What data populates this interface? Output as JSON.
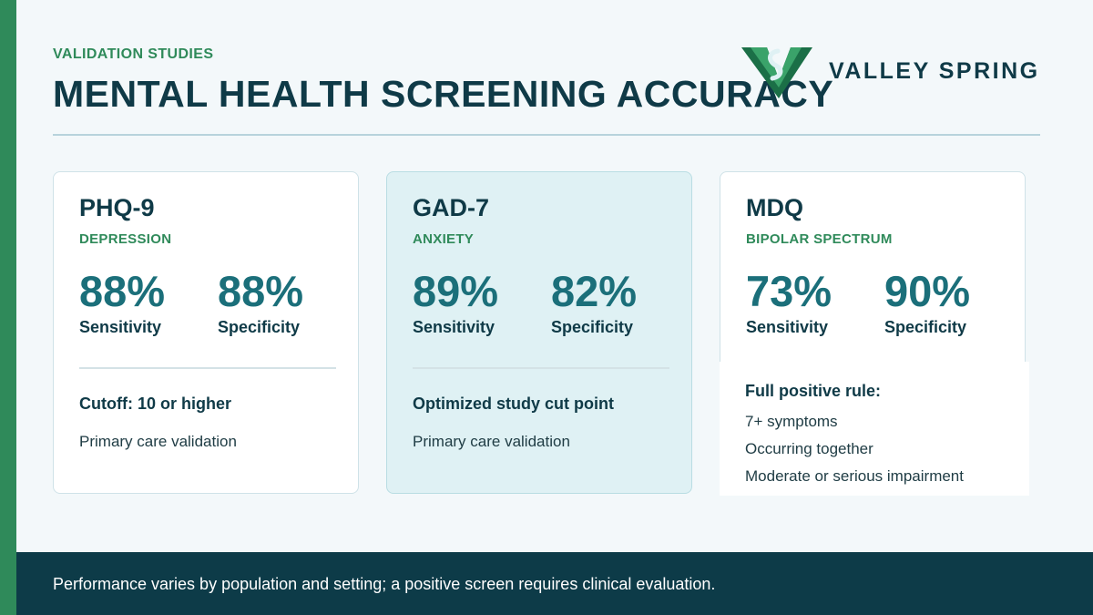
{
  "header": {
    "eyebrow": "VALIDATION STUDIES",
    "title": "MENTAL HEALTH SCREENING ACCURACY",
    "logo_text": "VALLEY SPRING"
  },
  "colors": {
    "brand_green": "#2f8a5a",
    "navy": "#0f3a47",
    "teal": "#1b6f7a",
    "highlight_card": "#dff1f4",
    "footer_bg": "#0d3b48"
  },
  "cards": [
    {
      "title": "PHQ-9",
      "subtitle": "DEPRESSION",
      "sensitivity": "88%",
      "sensitivity_label": "Sensitivity",
      "specificity": "88%",
      "specificity_label": "Specificity",
      "heading": "Cutoff: 10 or higher",
      "note": "Primary care validation"
    },
    {
      "title": "GAD-7",
      "subtitle": "ANXIETY",
      "sensitivity": "89%",
      "sensitivity_label": "Sensitivity",
      "specificity": "82%",
      "specificity_label": "Specificity",
      "heading": "Optimized study cut point",
      "note": "Primary care validation"
    },
    {
      "title": "MDQ",
      "subtitle": "BIPOLAR SPECTRUM",
      "sensitivity": "73%",
      "sensitivity_label": "Sensitivity",
      "specificity": "90%",
      "specificity_label": "Specificity",
      "heading": "Full positive rule:",
      "items": [
        "7+ symptoms",
        "Occurring together",
        "Moderate or serious impairment"
      ]
    }
  ],
  "footer": {
    "text": "Performance varies by population and setting; a positive screen requires clinical evaluation."
  }
}
